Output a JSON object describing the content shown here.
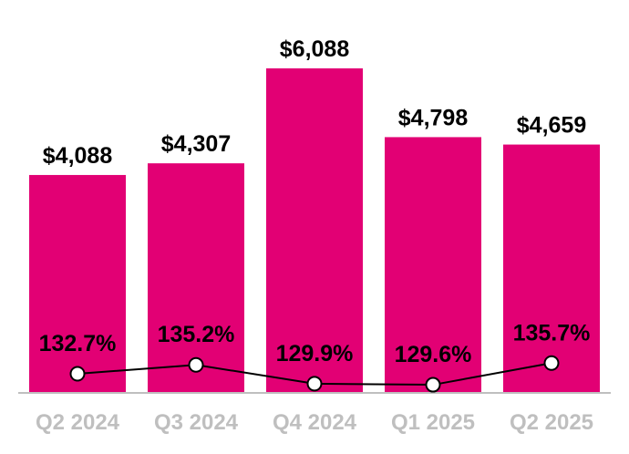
{
  "chart_data": {
    "type": "bar",
    "title": "",
    "xlabel": "",
    "ylabel": "",
    "grid": false,
    "legend": "none",
    "categories": [
      "Q2 2024",
      "Q3 2024",
      "Q4 2024",
      "Q1 2025",
      "Q2 2025"
    ],
    "ylim": [
      0,
      6088
    ],
    "series": [
      {
        "type": "bar",
        "values": [
          4088,
          4307,
          6088,
          4798,
          4659
        ],
        "labels": [
          "$4,088",
          "$4,307",
          "$6,088",
          "$4,798",
          "$4,659"
        ],
        "color": "#E20074"
      },
      {
        "type": "line",
        "values": [
          132.7,
          135.2,
          129.9,
          129.6,
          135.7
        ],
        "labels": [
          "132.7%",
          "135.2%",
          "129.9%",
          "129.6%",
          "135.7%"
        ],
        "color": "#000000"
      }
    ],
    "axis_line_color": "#BFBFBF",
    "tick_label_color": "#BFBFBF"
  }
}
